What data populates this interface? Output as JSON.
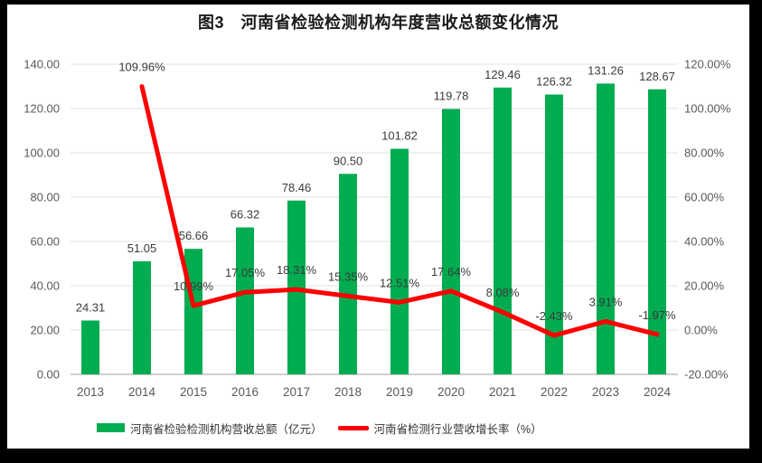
{
  "chart_data": {
    "type": "bar+line",
    "title": "图3　河南省检验检测机构年度营收总额变化情况",
    "categories": [
      "2013",
      "2014",
      "2015",
      "2016",
      "2017",
      "2018",
      "2019",
      "2020",
      "2021",
      "2022",
      "2023",
      "2024"
    ],
    "series": [
      {
        "name": "河南省检验检测机构营收总额（亿元）",
        "type": "bar",
        "color": "#00AC50",
        "axis": "left",
        "values": [
          24.31,
          51.05,
          56.66,
          66.32,
          78.46,
          90.5,
          101.82,
          119.78,
          129.46,
          126.32,
          131.26,
          128.67
        ],
        "labels": [
          "24.31",
          "51.05",
          "56.66",
          "66.32",
          "78.46",
          "90.50",
          "101.82",
          "119.78",
          "129.46",
          "126.32",
          "131.26",
          "128.67"
        ]
      },
      {
        "name": "河南省检测行业营收增长率（%）",
        "type": "line",
        "color": "#FF0000",
        "axis": "right",
        "values": [
          null,
          109.96,
          10.99,
          17.05,
          18.31,
          15.35,
          12.51,
          17.64,
          8.08,
          -2.43,
          3.91,
          -1.97
        ],
        "labels": [
          "",
          "109.96%",
          "10.99%",
          "17.05%",
          "18.31%",
          "15.35%",
          "12.51%",
          "17.64%",
          "8.08%",
          "-2.43%",
          "3.91%",
          "-1.97%"
        ]
      }
    ],
    "left_axis": {
      "min": 0,
      "max": 140,
      "step": 20,
      "tick_labels": [
        "0.00",
        "20.00",
        "40.00",
        "60.00",
        "80.00",
        "100.00",
        "120.00",
        "140.00"
      ]
    },
    "right_axis": {
      "min": -20,
      "max": 120,
      "step": 20,
      "tick_labels": [
        "-20.00%",
        "0.00%",
        "20.00%",
        "40.00%",
        "60.00%",
        "80.00%",
        "100.00%",
        "120.00%"
      ]
    },
    "grid": true,
    "legend_position": "bottom",
    "colors": {
      "background": "#FFFFFF",
      "frame": "#000000",
      "gridline": "#E2E2E2",
      "axis_line": "#BFBFBF",
      "tick_text": "#595959",
      "data_label_text": "#3B3B3B",
      "title_text": "#1A1A1A"
    }
  }
}
